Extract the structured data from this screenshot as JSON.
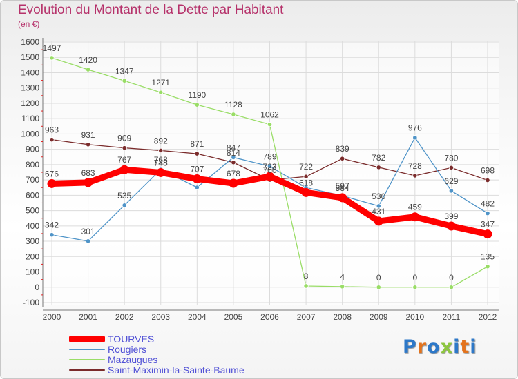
{
  "title": "Evolution du Montant de la Dette par Habitant",
  "subtitle": "(en €)",
  "logo": {
    "letters": [
      "P",
      "r",
      "o",
      "x",
      "i",
      "t",
      "i"
    ],
    "colors": [
      "#2d78c8",
      "#e4731c",
      "#2d78c8",
      "#8dc63f",
      "#2d78c8",
      "#e4731c",
      "#2d78c8"
    ]
  },
  "chart_data": {
    "type": "line",
    "x": [
      "2000",
      "2001",
      "2002",
      "2003",
      "2004",
      "2005",
      "2006",
      "2007",
      "2008",
      "2009",
      "2010",
      "2011",
      "2012"
    ],
    "y_ticks": [
      "-100",
      "0",
      "100",
      "200",
      "300",
      "400",
      "500",
      "600",
      "700",
      "800",
      "900",
      "1000",
      "1100",
      "1200",
      "1300",
      "1400",
      "1500",
      "1600"
    ],
    "ylim": [
      -100,
      1600
    ],
    "grid": true,
    "legend_position": "bottom-left",
    "series": [
      {
        "name": "TOURVES",
        "color": "#ff0000",
        "values": [
          676,
          683,
          767,
          748,
          707,
          678,
          723,
          618,
          584,
          431,
          459,
          399,
          347
        ],
        "labels": [
          "676",
          "683",
          "767",
          "748",
          "707",
          "678",
          "723",
          "618",
          "584",
          "431",
          "459",
          "399",
          "347"
        ]
      },
      {
        "name": "Rougiers",
        "color": "#4f94c8",
        "values": [
          342,
          301,
          535,
          768,
          651,
          847,
          789,
          650,
          597,
          530,
          976,
          629,
          482
        ],
        "labels": [
          "342",
          "301",
          "535",
          "768",
          "",
          "847",
          "789",
          "",
          "597",
          "530",
          "976",
          "629",
          "482"
        ]
      },
      {
        "name": "Mazaugues",
        "color": "#99dd66",
        "values": [
          1497,
          1420,
          1347,
          1271,
          1190,
          1128,
          1062,
          8,
          4,
          0,
          0,
          0,
          135
        ],
        "labels": [
          "1497",
          "1420",
          "1347",
          "1271",
          "1190",
          "1128",
          "1062",
          "8",
          "4",
          "0",
          "0",
          "0",
          "135"
        ]
      },
      {
        "name": "Saint-Maximin-la-Sainte-Baume",
        "color": "#7a2b2b",
        "values": [
          963,
          931,
          909,
          892,
          871,
          814,
          700,
          722,
          839,
          782,
          728,
          780,
          698
        ],
        "labels": [
          "963",
          "931",
          "909",
          "892",
          "871",
          "814",
          "700",
          "722",
          "839",
          "782",
          "728",
          "780",
          "698"
        ]
      }
    ]
  }
}
